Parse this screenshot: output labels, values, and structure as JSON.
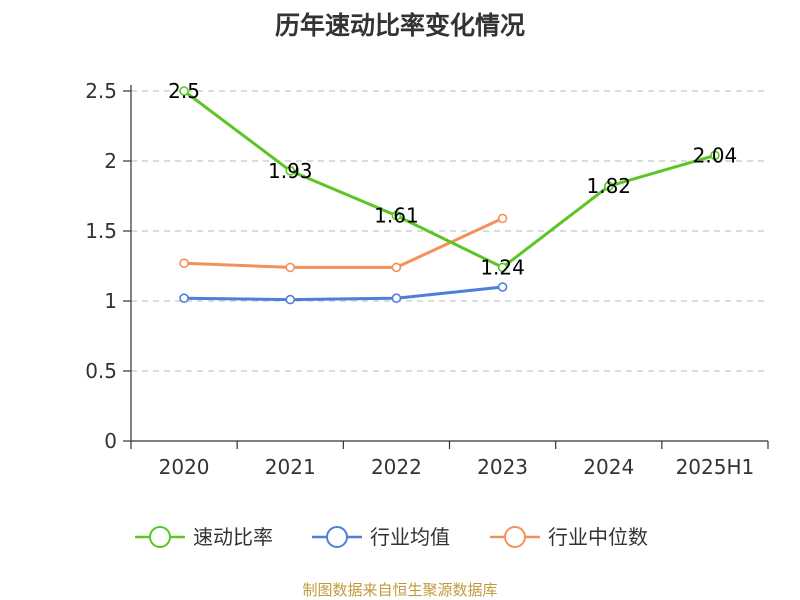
{
  "chart_data": {
    "type": "line",
    "title": "历年速动比率变化情况",
    "xlabel": "",
    "ylabel": "",
    "categories": [
      "2020",
      "2021",
      "2022",
      "2023",
      "2024",
      "2025H1"
    ],
    "ylim": [
      0,
      2.5
    ],
    "yticks": [
      "0",
      "0.5",
      "1",
      "1.5",
      "2",
      "2.5"
    ],
    "grid": true,
    "legend_position": "bottom",
    "series": [
      {
        "name": "速动比率",
        "color": "#5cc526",
        "values": [
          2.5,
          1.93,
          1.61,
          1.24,
          1.82,
          2.04
        ],
        "labels": [
          "2.5",
          "1.93",
          "1.61",
          "1.24",
          "1.82",
          "2.04"
        ]
      },
      {
        "name": "行业均值",
        "color": "#4d7fd9",
        "values": [
          1.02,
          1.01,
          1.02,
          1.1,
          null,
          null
        ]
      },
      {
        "name": "行业中位数",
        "color": "#f4915b",
        "values": [
          1.27,
          1.24,
          1.24,
          1.59,
          null,
          null
        ]
      }
    ]
  },
  "footer": {
    "source": "制图数据来自恒生聚源数据库"
  }
}
